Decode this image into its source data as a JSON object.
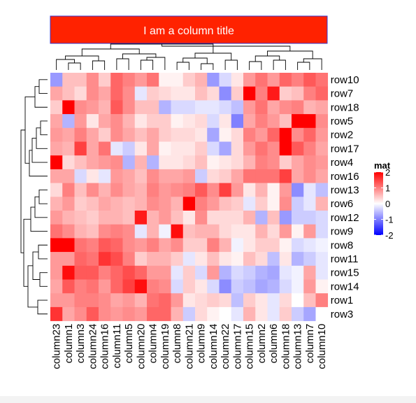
{
  "chart_data": {
    "type": "heatmap",
    "title": "I am a column title",
    "columns": [
      "column23",
      "column1",
      "column3",
      "column24",
      "column16",
      "column11",
      "column5",
      "column20",
      "column4",
      "column19",
      "column8",
      "column21",
      "column9",
      "column14",
      "column22",
      "column17",
      "column15",
      "column2",
      "column6",
      "column18",
      "column13",
      "column7",
      "column10"
    ],
    "rows": [
      "row10",
      "row7",
      "row18",
      "row5",
      "row2",
      "row17",
      "row4",
      "row16",
      "row13",
      "row6",
      "row12",
      "row9",
      "row8",
      "row11",
      "row15",
      "row14",
      "row1",
      "row3"
    ],
    "values": [
      [
        -0.8,
        0.5,
        0.5,
        0.9,
        0.4,
        1.2,
        1.0,
        0.8,
        1.1,
        0.1,
        0.1,
        0.4,
        0.6,
        -0.8,
        -0.3,
        0.2,
        0.8,
        1.1,
        0.8,
        1.2,
        1.0,
        1.3,
        1.1
      ],
      [
        0.7,
        0.5,
        0.3,
        0.9,
        0.7,
        1.2,
        0.9,
        -0.2,
        0.4,
        0.3,
        0.2,
        0.2,
        0.5,
        0.3,
        -0.9,
        0.4,
        2.0,
        1.0,
        1.8,
        0.4,
        0.5,
        1.0,
        1.2
      ],
      [
        0.4,
        2.0,
        0.9,
        0.8,
        0.6,
        1.3,
        0.9,
        0.5,
        0.5,
        -0.6,
        -0.3,
        -0.3,
        -0.2,
        -0.2,
        -0.3,
        -0.5,
        0.8,
        1.1,
        0.7,
        0.9,
        1.0,
        0.6,
        0.7
      ],
      [
        0.7,
        -0.6,
        0.8,
        0.2,
        0.7,
        0.9,
        0.6,
        0.2,
        0.4,
        0.4,
        0.1,
        0.2,
        0.3,
        -0.3,
        0.2,
        -1.0,
        0.7,
        1.0,
        0.8,
        0.5,
        2.4,
        2.2,
        0.9
      ],
      [
        0.8,
        0.7,
        1.0,
        0.7,
        0.4,
        0.9,
        0.7,
        0.5,
        0.7,
        0.4,
        0.3,
        0.3,
        0.2,
        -0.7,
        0.1,
        0.3,
        1.0,
        0.8,
        1.2,
        2.5,
        0.9,
        1.2,
        0.8
      ],
      [
        0.7,
        0.6,
        1.5,
        0.7,
        1.1,
        -0.2,
        -0.4,
        0.2,
        0.7,
        0.1,
        0.2,
        0.2,
        0.4,
        -0.3,
        -0.7,
        0.3,
        0.8,
        1.1,
        0.9,
        2.2,
        1.3,
        1.0,
        0.7
      ],
      [
        2.0,
        0.3,
        0.5,
        0.7,
        0.8,
        0.9,
        -0.6,
        0.6,
        -0.6,
        0.2,
        0.2,
        0.3,
        0.5,
        0.1,
        0.2,
        0.3,
        0.6,
        1.0,
        0.9,
        0.4,
        0.7,
        0.9,
        0.8
      ],
      [
        0.7,
        0.7,
        -0.3,
        0.2,
        -0.2,
        0.8,
        0.7,
        0.5,
        0.9,
        0.7,
        0.7,
        0.8,
        -0.4,
        0.3,
        0.4,
        0.7,
        1.1,
        1.1,
        1.1,
        1.5,
        0.7,
        0.9,
        0.7
      ],
      [
        0.3,
        1.0,
        0.5,
        0.9,
        0.6,
        0.9,
        0.7,
        0.6,
        1.0,
        0.8,
        0.9,
        1.0,
        1.3,
        0.9,
        1.5,
        0.8,
        0.2,
        0.6,
        0.1,
        0.8,
        -0.9,
        -0.2,
        -0.5
      ],
      [
        0.6,
        0.8,
        0.4,
        0.5,
        0.7,
        0.6,
        0.5,
        0.6,
        0.9,
        0.8,
        0.6,
        2.0,
        1.0,
        0.8,
        0.5,
        0.4,
        -0.2,
        0.4,
        0.1,
        0.9,
        -0.4,
        -0.2,
        0.6
      ],
      [
        0.8,
        0.6,
        0.5,
        0.4,
        0.6,
        0.6,
        0.5,
        1.8,
        0.6,
        0.8,
        0.5,
        0.2,
        0.9,
        0.3,
        0.3,
        0.3,
        0.6,
        -0.6,
        0.5,
        -0.8,
        -0.4,
        -0.4,
        -0.3
      ],
      [
        1.1,
        0.9,
        0.6,
        0.5,
        0.9,
        1.0,
        0.9,
        -0.2,
        0.6,
        -0.1,
        1.9,
        0.5,
        0.6,
        0.6,
        0.3,
        0.2,
        0.2,
        0.6,
        0.3,
        0.8,
        0.1,
        0.8,
        -0.3
      ],
      [
        2.4,
        2.4,
        1.1,
        1.0,
        1.3,
        1.2,
        0.9,
        0.8,
        1.0,
        0.7,
        0.9,
        0.4,
        0.4,
        1.0,
        0.6,
        -0.1,
        0.2,
        0.4,
        0.4,
        0.1,
        -0.3,
        -0.2,
        -0.1
      ],
      [
        0.8,
        0.8,
        1.2,
        1.1,
        1.6,
        1.4,
        1.0,
        0.4,
        0.6,
        0.6,
        0.4,
        -0.2,
        0.2,
        0.5,
        0.2,
        0.1,
        0.5,
        0.3,
        -0.5,
        0.2,
        -0.6,
        -0.4,
        -0.2
      ],
      [
        0.8,
        1.9,
        1.3,
        1.3,
        1.0,
        1.2,
        1.4,
        1.2,
        0.8,
        0.8,
        -0.2,
        0.4,
        -0.3,
        0.8,
        -0.6,
        -0.3,
        -0.4,
        -0.6,
        -0.7,
        -0.2,
        -0.1,
        0.7,
        -0.2
      ],
      [
        0.7,
        1.3,
        1.0,
        1.1,
        0.8,
        1.2,
        1.5,
        1.9,
        1.0,
        0.9,
        -0.3,
        0.4,
        0.2,
        -0.3,
        -0.9,
        -0.4,
        -0.5,
        -0.7,
        -0.6,
        -0.3,
        -0.1,
        0.8,
        0.1
      ],
      [
        0.8,
        0.8,
        1.0,
        1.0,
        0.9,
        0.7,
        0.8,
        0.6,
        1.1,
        1.2,
        0.8,
        0.2,
        0.3,
        0.4,
        0.3,
        -0.5,
        0.4,
        0.2,
        -0.2,
        0.3,
        0.0,
        0.5,
        1.0
      ],
      [
        1.6,
        0.7,
        0.9,
        1.3,
        0.9,
        0.8,
        0.9,
        0.8,
        1.2,
        1.2,
        0.6,
        -0.4,
        0.3,
        0.1,
        0.0,
        -0.2,
        0.6,
        0.2,
        -0.2,
        0.4,
        -0.4,
        -0.7,
        0.0
      ]
    ],
    "legend": {
      "title": "mat",
      "ticks": [
        2,
        1,
        0,
        -1,
        -2
      ],
      "range": [
        -2,
        2
      ]
    },
    "colors": {
      "low": "#0000ff",
      "mid": "#ffffff",
      "high": "#ff0000",
      "title_box": "#ff2200",
      "title_border": "#3333cc"
    },
    "row_dendrogram": "left",
    "column_dendrogram": "top"
  }
}
